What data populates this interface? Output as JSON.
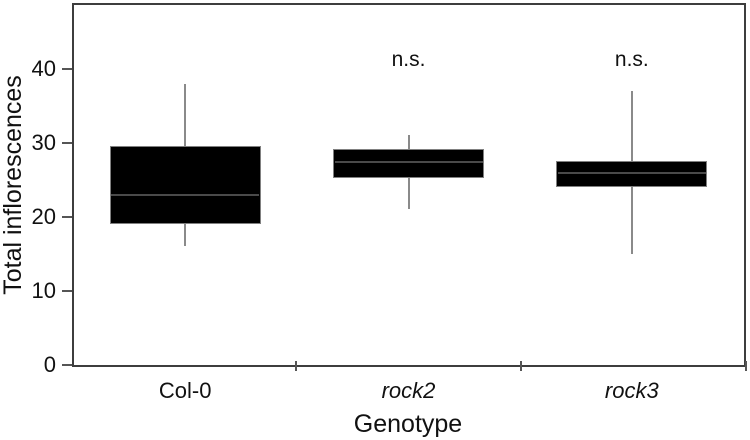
{
  "chart_data": {
    "type": "boxplot",
    "title": "",
    "xlabel": "Genotype",
    "ylabel": "Total inflorescences",
    "ylim": [
      0,
      48.6
    ],
    "y_ticks": [
      0,
      10,
      20,
      30,
      40
    ],
    "categories": [
      "Col-0",
      "rock2",
      "rock3"
    ],
    "grid": false,
    "legend": false,
    "boxes": [
      {
        "label": "Col-0",
        "italic": false,
        "annotation": "",
        "whisker_low": 16,
        "q1": 19,
        "median": 23,
        "q3": 29.5,
        "whisker_high": 38
      },
      {
        "label": "rock2",
        "italic": true,
        "annotation": "n.s.",
        "whisker_low": 21,
        "q1": 25.3,
        "median": 27.4,
        "q3": 29.2,
        "whisker_high": 31
      },
      {
        "label": "rock3",
        "italic": true,
        "annotation": "n.s.",
        "whisker_low": 15,
        "q1": 24,
        "median": 25.9,
        "q3": 27.6,
        "whisker_high": 37
      }
    ],
    "colors": {
      "box_fill": "#000000",
      "box_border": "#808080",
      "whisker": "#8a8a8a",
      "median": "#4a4a4a",
      "axis_frame": "#3d3d3d",
      "tick": "#555555",
      "text": "#111111"
    }
  }
}
